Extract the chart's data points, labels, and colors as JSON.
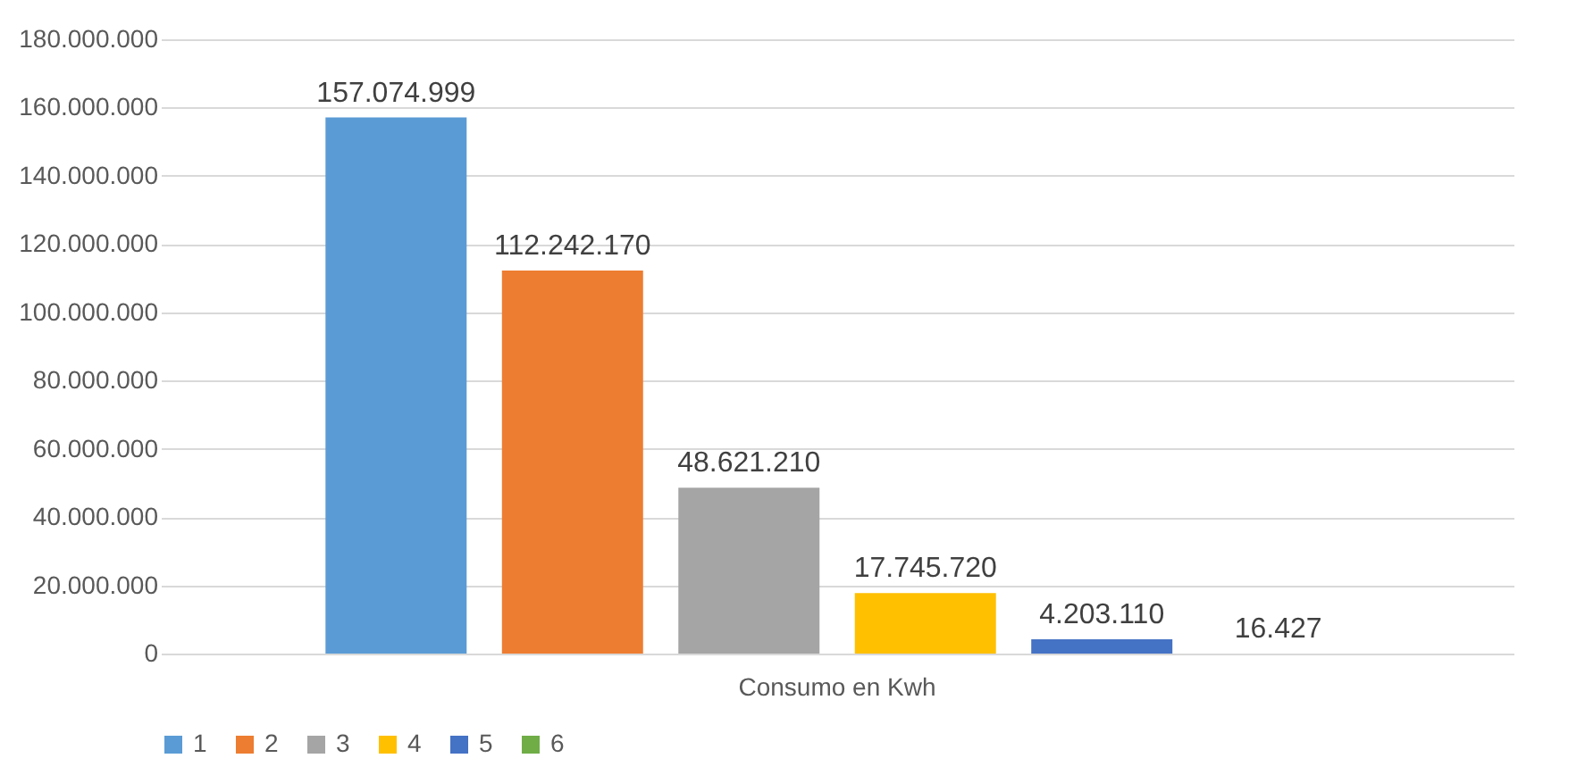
{
  "chart_data": {
    "type": "bar",
    "categories": [
      "Consumo en Kwh"
    ],
    "series": [
      {
        "name": "1",
        "color": "#5b9bd5",
        "values": [
          157074999
        ],
        "value_labels": [
          "157.074.999"
        ]
      },
      {
        "name": "2",
        "color": "#ed7d31",
        "values": [
          112242170
        ],
        "value_labels": [
          "112.242.170"
        ]
      },
      {
        "name": "3",
        "color": "#a5a5a5",
        "values": [
          48621210
        ],
        "value_labels": [
          "48.621.210"
        ]
      },
      {
        "name": "4",
        "color": "#ffc000",
        "values": [
          17745720
        ],
        "value_labels": [
          "17.745.720"
        ]
      },
      {
        "name": "5",
        "color": "#4472c4",
        "values": [
          4203110
        ],
        "value_labels": [
          "4.203.110"
        ]
      },
      {
        "name": "6",
        "color": "#70ad47",
        "values": [
          16427
        ],
        "value_labels": [
          "16.427"
        ]
      }
    ],
    "ylim": [
      0,
      180000000
    ],
    "yticks": [
      0,
      {
        "value": 20000000,
        "label": "20.000.000"
      },
      {
        "value": 40000000,
        "label": "40.000.000"
      },
      {
        "value": 60000000,
        "label": "60.000.000"
      },
      {
        "value": 80000000,
        "label": "80.000.000"
      },
      {
        "value": 100000000,
        "label": "100.000.000"
      },
      {
        "value": 120000000,
        "label": "120.000.000"
      },
      {
        "value": 140000000,
        "label": "140.000.000"
      },
      {
        "value": 160000000,
        "label": "160.000.000"
      },
      {
        "value": 180000000,
        "label": "180.000.000"
      }
    ],
    "grid": "y",
    "legend": "bottom"
  }
}
